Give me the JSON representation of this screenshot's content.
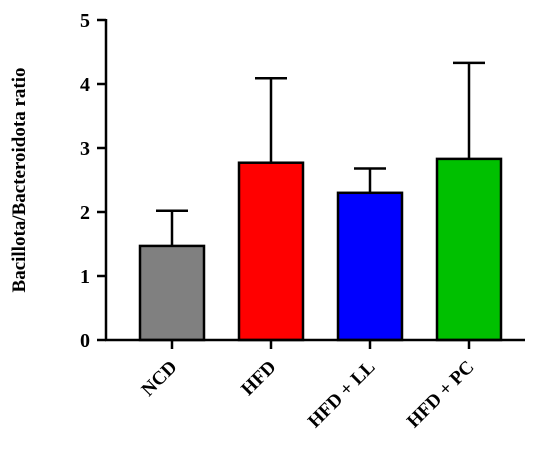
{
  "chart_data": {
    "type": "bar",
    "title": "",
    "xlabel": "",
    "ylabel": "Bacillota/Bacteroidota ratio",
    "ylim": [
      0,
      5
    ],
    "yticks": [
      0,
      1,
      2,
      3,
      4,
      5
    ],
    "categories": [
      "NCD",
      "HFD",
      "HFD + LL",
      "HFD + PC"
    ],
    "values": [
      1.47,
      2.77,
      2.3,
      2.83
    ],
    "error_upper": [
      0.55,
      1.32,
      0.38,
      1.5
    ],
    "colors": [
      "#808080",
      "#ff0000",
      "#0000ff",
      "#00c000"
    ],
    "error_bars": "upper",
    "grid": false,
    "legend": "none"
  }
}
